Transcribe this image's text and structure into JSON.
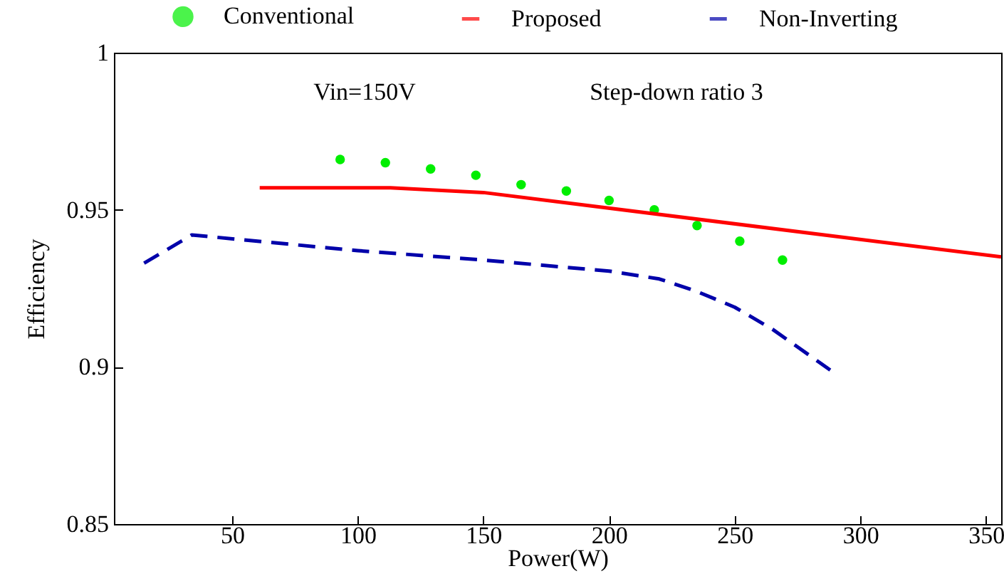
{
  "chart_data": {
    "type": "line",
    "xlabel": "Power(W)",
    "ylabel": "Efficiency",
    "annotations": [
      "Vin=150V",
      "Step-down ratio 3"
    ],
    "xlim": [
      3,
      356
    ],
    "xticks": [
      50,
      100,
      150,
      200,
      250,
      300,
      350
    ],
    "ylim": [
      0.85,
      1
    ],
    "yticks": [
      0.85,
      0.9,
      0.95,
      1
    ],
    "grid": false,
    "legend": "top",
    "series": [
      {
        "name": "Conventional",
        "type": "scatter",
        "marker": "circle",
        "color": "#00ee00",
        "x": [
          93,
          111,
          129,
          147,
          165,
          183,
          200,
          218,
          235,
          252,
          269
        ],
        "values": [
          0.966,
          0.965,
          0.963,
          0.961,
          0.958,
          0.956,
          0.953,
          0.95,
          0.945,
          0.94,
          0.934
        ]
      },
      {
        "name": "Proposed",
        "line_style": "solid",
        "color": "#ff0000",
        "x": [
          61,
          113,
          150,
          185,
          356
        ],
        "values": [
          0.957,
          0.957,
          0.9555,
          0.952,
          0.935
        ]
      },
      {
        "name": "Non-Inverting",
        "line_style": "dashed",
        "color": "#0000aa",
        "x": [
          15,
          34,
          100,
          150,
          200,
          220,
          235,
          250,
          265,
          288
        ],
        "values": [
          0.933,
          0.942,
          0.937,
          0.934,
          0.9305,
          0.928,
          0.924,
          0.919,
          0.912,
          0.899
        ]
      }
    ]
  }
}
